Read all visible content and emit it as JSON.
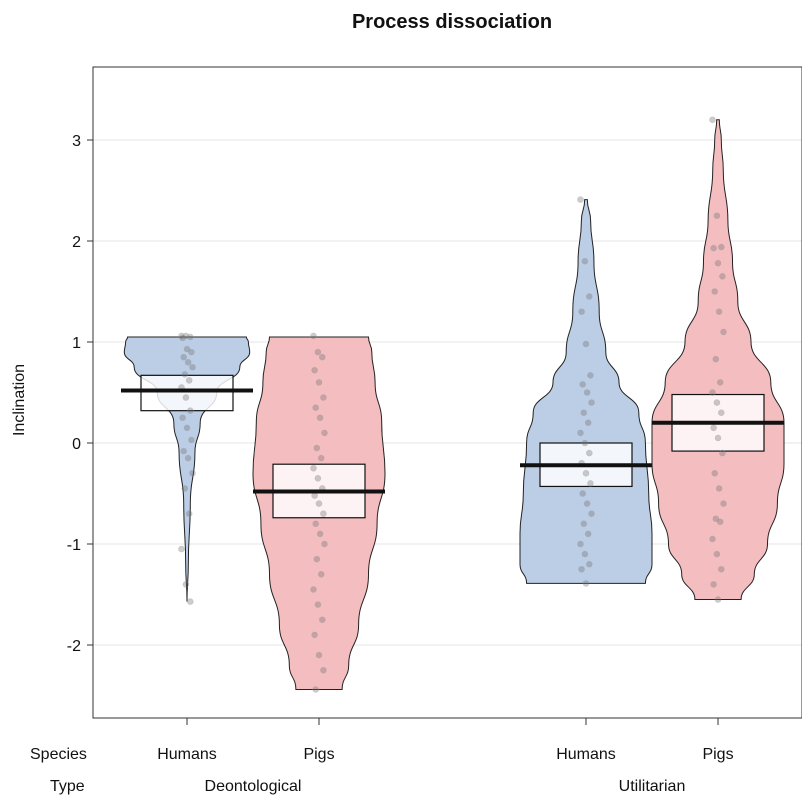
{
  "chart_data": {
    "type": "pirate",
    "title": "Process dissociation",
    "ylabel": "Inclination",
    "ylim": [
      -2.75,
      3.75
    ],
    "yticks": [
      -2,
      -1,
      0,
      1,
      2,
      3
    ],
    "grid": true,
    "factor_labels": {
      "species": "Species",
      "type": "Type"
    },
    "type_groups": [
      "Deontological",
      "Utilitarian"
    ],
    "colors": {
      "Humans": "#bccde6",
      "Pigs": "#f4bdc0"
    },
    "series": [
      {
        "type_group": "Deontological",
        "species": "Humans",
        "mean": 0.52,
        "hdi": [
          0.32,
          0.67
        ],
        "violin": [
          [
            -1.57,
            0.0
          ],
          [
            -1.2,
            0.02
          ],
          [
            -0.6,
            0.05
          ],
          [
            -0.1,
            0.12
          ],
          [
            0.2,
            0.2
          ],
          [
            0.5,
            0.45
          ],
          [
            0.75,
            0.8
          ],
          [
            0.9,
            0.95
          ],
          [
            1.0,
            0.93
          ],
          [
            1.05,
            0.9
          ]
        ],
        "points": [
          1.06,
          1.06,
          1.05,
          1.04,
          0.93,
          0.9,
          0.85,
          0.8,
          0.75,
          0.68,
          0.62,
          0.55,
          0.45,
          0.32,
          0.25,
          0.15,
          0.03,
          -0.08,
          -0.15,
          -0.3,
          -0.45,
          -0.7,
          -1.05,
          -1.4,
          -1.57
        ]
      },
      {
        "type_group": "Deontological",
        "species": "Pigs",
        "mean": -0.48,
        "hdi": [
          -0.74,
          -0.21
        ],
        "violin": [
          [
            -2.44,
            0.35
          ],
          [
            -2.2,
            0.45
          ],
          [
            -1.8,
            0.6
          ],
          [
            -1.3,
            0.75
          ],
          [
            -0.8,
            0.88
          ],
          [
            -0.3,
            1.0
          ],
          [
            0.2,
            0.95
          ],
          [
            0.6,
            0.85
          ],
          [
            0.9,
            0.8
          ],
          [
            1.05,
            0.75
          ]
        ],
        "points": [
          1.06,
          0.9,
          0.85,
          0.72,
          0.6,
          0.45,
          0.35,
          0.25,
          0.1,
          -0.05,
          -0.15,
          -0.25,
          -0.35,
          -0.45,
          -0.52,
          -0.6,
          -0.7,
          -0.8,
          -0.9,
          -1.0,
          -1.15,
          -1.3,
          -1.45,
          -1.6,
          -1.75,
          -1.9,
          -2.1,
          -2.25,
          -2.44
        ]
      },
      {
        "type_group": "Utilitarian",
        "species": "Humans",
        "mean": -0.22,
        "hdi": [
          -0.43,
          0.0
        ],
        "violin": [
          [
            -1.39,
            0.9
          ],
          [
            -1.2,
            1.0
          ],
          [
            -0.9,
            1.0
          ],
          [
            -0.5,
            0.95
          ],
          [
            0.0,
            0.9
          ],
          [
            0.3,
            0.8
          ],
          [
            0.6,
            0.5
          ],
          [
            0.9,
            0.3
          ],
          [
            1.3,
            0.2
          ],
          [
            1.8,
            0.12
          ],
          [
            2.2,
            0.07
          ],
          [
            2.41,
            0.02
          ]
        ],
        "points": [
          2.41,
          1.8,
          1.45,
          1.3,
          0.98,
          0.67,
          0.58,
          0.5,
          0.4,
          0.3,
          0.2,
          0.1,
          0.0,
          -0.1,
          -0.2,
          -0.3,
          -0.4,
          -0.5,
          -0.6,
          -0.7,
          -0.8,
          -0.9,
          -1.0,
          -1.1,
          -1.2,
          -1.25,
          -1.39
        ]
      },
      {
        "type_group": "Utilitarian",
        "species": "Pigs",
        "mean": 0.2,
        "hdi": [
          -0.08,
          0.48
        ],
        "violin": [
          [
            -1.55,
            0.35
          ],
          [
            -1.3,
            0.55
          ],
          [
            -1.0,
            0.75
          ],
          [
            -0.6,
            0.9
          ],
          [
            -0.2,
            1.0
          ],
          [
            0.2,
            1.0
          ],
          [
            0.6,
            0.8
          ],
          [
            1.0,
            0.5
          ],
          [
            1.4,
            0.3
          ],
          [
            1.8,
            0.22
          ],
          [
            2.2,
            0.15
          ],
          [
            2.7,
            0.08
          ],
          [
            3.0,
            0.05
          ],
          [
            3.2,
            0.02
          ]
        ],
        "points": [
          3.2,
          2.25,
          1.94,
          1.93,
          1.78,
          1.65,
          1.5,
          1.3,
          1.1,
          0.83,
          0.6,
          0.5,
          0.4,
          0.3,
          0.15,
          0.05,
          -0.1,
          -0.3,
          -0.45,
          -0.6,
          -0.75,
          -0.78,
          -0.95,
          -1.1,
          -1.25,
          -1.4,
          -1.55
        ]
      }
    ]
  }
}
